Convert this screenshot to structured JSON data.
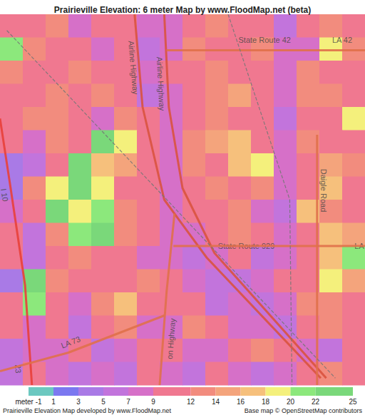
{
  "chart_data": {
    "type": "heatmap",
    "title": "Prairieville Elevation: 6 meter Map by www.FloodMap.net (beta)",
    "tick_labels": false,
    "xlim": [
      0,
      16
    ],
    "ylim": [
      0,
      16
    ],
    "cells": [
      [
        10,
        11,
        12,
        8,
        11,
        10,
        8,
        7,
        11,
        12,
        10,
        11,
        6,
        11,
        12,
        10
      ],
      [
        20,
        13,
        11,
        10,
        7,
        11,
        6,
        7,
        12,
        10,
        9,
        12,
        7,
        8,
        18,
        12
      ],
      [
        12,
        11,
        10,
        12,
        11,
        9,
        7,
        10,
        11,
        13,
        10,
        11,
        7,
        12,
        11,
        10
      ],
      [
        11,
        10,
        12,
        11,
        13,
        10,
        6,
        8,
        11,
        12,
        14,
        10,
        8,
        12,
        13,
        11
      ],
      [
        10,
        12,
        13,
        11,
        8,
        12,
        11,
        7,
        9,
        12,
        11,
        10,
        6,
        9,
        10,
        18
      ],
      [
        9,
        8,
        12,
        10,
        22,
        18,
        9,
        7,
        12,
        14,
        16,
        11,
        8,
        12,
        11,
        10
      ],
      [
        4,
        5,
        10,
        22,
        16,
        14,
        11,
        8,
        12,
        10,
        17,
        18,
        7,
        10,
        14,
        12
      ],
      [
        3,
        12,
        19,
        22,
        18,
        11,
        9,
        8,
        11,
        13,
        10,
        12,
        7,
        9,
        16,
        11
      ],
      [
        8,
        10,
        22,
        18,
        21,
        13,
        10,
        7,
        9,
        11,
        12,
        8,
        6,
        16,
        12,
        10
      ],
      [
        10,
        6,
        12,
        20,
        22,
        12,
        11,
        8,
        7,
        10,
        12,
        9,
        7,
        11,
        17,
        14
      ],
      [
        11,
        6,
        10,
        12,
        9,
        10,
        8,
        7,
        6,
        8,
        9,
        6,
        8,
        10,
        16,
        21
      ],
      [
        4,
        22,
        12,
        9,
        10,
        11,
        12,
        10,
        7,
        6,
        5,
        7,
        9,
        11,
        18,
        14
      ],
      [
        10,
        21,
        11,
        8,
        12,
        16,
        9,
        11,
        10,
        6,
        7,
        6,
        8,
        12,
        13,
        11
      ],
      [
        9,
        7,
        10,
        6,
        10,
        12,
        8,
        7,
        12,
        10,
        8,
        7,
        6,
        9,
        12,
        10
      ],
      [
        6,
        8,
        7,
        9,
        6,
        7,
        11,
        9,
        8,
        7,
        10,
        12,
        11,
        7,
        6,
        10
      ],
      [
        5,
        9,
        8,
        6,
        7,
        5,
        10,
        8,
        6,
        9,
        7,
        6,
        8,
        10,
        12,
        11
      ]
    ],
    "color_bar": {
      "bins": [
        -1,
        1,
        3,
        5,
        7,
        9,
        12,
        14,
        16,
        18,
        20,
        22,
        25
      ],
      "colors": [
        "#6cc8c0",
        "#7b78f0",
        "#a97ae6",
        "#c274dc",
        "#d670c8",
        "#f07890",
        "#f28c7e",
        "#f4a47c",
        "#f6c07c",
        "#f4f07c",
        "#8ce87c",
        "#7ad87a"
      ],
      "ticks": [
        {
          "value": -1,
          "label": "meter -1"
        },
        1,
        3,
        5,
        7,
        9,
        12,
        14,
        16,
        18,
        20,
        22,
        25
      ]
    },
    "roads": [
      {
        "color": "#d9533f",
        "line_style": "solid",
        "points": [
          [
            5.9,
            0
          ],
          [
            6.25,
            4
          ],
          [
            7.2,
            8
          ],
          [
            9.06,
            10.5
          ],
          [
            14.06,
            15.7
          ]
        ],
        "labels": [
          {
            "text": "Airline Highway",
            "at": [
              5.85,
              2.3
            ]
          }
        ]
      },
      {
        "color": "#d9533f",
        "line_style": "solid",
        "points": [
          [
            7.2,
            0
          ],
          [
            7.4,
            4
          ],
          [
            8.0,
            7.5
          ],
          [
            9.4,
            10.3
          ],
          [
            14.3,
            15.7
          ]
        ],
        "labels": [
          {
            "text": "Airline Highway",
            "at": [
              7.05,
              3.0
            ]
          }
        ]
      },
      {
        "color": "#e8403a",
        "line_style": "solid",
        "points": [
          [
            0,
            4.5
          ],
          [
            0.45,
            7.4
          ],
          [
            1.1,
            11.7
          ],
          [
            1.4,
            16
          ]
        ],
        "labels": [
          {
            "text": "I 10",
            "at": [
              0.2,
              7.8
            ]
          },
          {
            "text": "23",
            "at": [
              0.8,
              15.3
            ]
          }
        ]
      },
      {
        "color": "#e0704a",
        "line_style": "solid",
        "points": [
          [
            7.3,
            1.55
          ],
          [
            16,
            1.55
          ]
        ],
        "labels": [
          {
            "text": "State Route 42",
            "at": [
              11.6,
              1.1
            ]
          },
          {
            "text": "LA 42",
            "at": [
              15.0,
              1.1
            ]
          }
        ]
      },
      {
        "color": "#e0704a",
        "line_style": "solid",
        "points": [
          [
            7.6,
            10.0
          ],
          [
            16,
            10.0
          ]
        ],
        "labels": [
          {
            "text": "State Route 929",
            "at": [
              10.8,
              10.0
            ]
          },
          {
            "text": "LA",
            "at": [
              15.75,
              10.0
            ]
          }
        ]
      },
      {
        "color": "#e0704a",
        "line_style": "solid",
        "points": [
          [
            13.9,
            5.2
          ],
          [
            13.9,
            16
          ]
        ],
        "labels": [
          {
            "text": "Daigle Road",
            "at": [
              14.2,
              7.6
            ]
          }
        ]
      },
      {
        "color": "#e0704a",
        "line_style": "solid",
        "points": [
          [
            0,
            15.4
          ],
          [
            3,
            14.6
          ],
          [
            7.2,
            13.0
          ]
        ],
        "labels": [
          {
            "text": "LA 73",
            "at": [
              3.1,
              14.15
            ]
          }
        ]
      },
      {
        "color": "#e0704a",
        "line_style": "solid",
        "points": [
          [
            7.0,
            16
          ],
          [
            7.3,
            12
          ],
          [
            7.65,
            8.6
          ]
        ],
        "labels": [
          {
            "text": "on Highway",
            "at": [
              7.5,
              14.0
            ]
          }
        ]
      },
      {
        "color": "#777777",
        "line_style": "dashed",
        "points": [
          [
            0.3,
            0.7
          ],
          [
            14.7,
            15.7
          ]
        ]
      },
      {
        "color": "#777777",
        "line_style": "dashed",
        "points": [
          [
            10.0,
            0
          ],
          [
            12.7,
            8
          ],
          [
            12.8,
            16
          ]
        ]
      }
    ],
    "logo": "OpenStreetMap",
    "footer_left": "Prairieville Elevation Map developed by www.FloodMap.net",
    "footer_right": "Base map © OpenStreetMap contributors"
  }
}
